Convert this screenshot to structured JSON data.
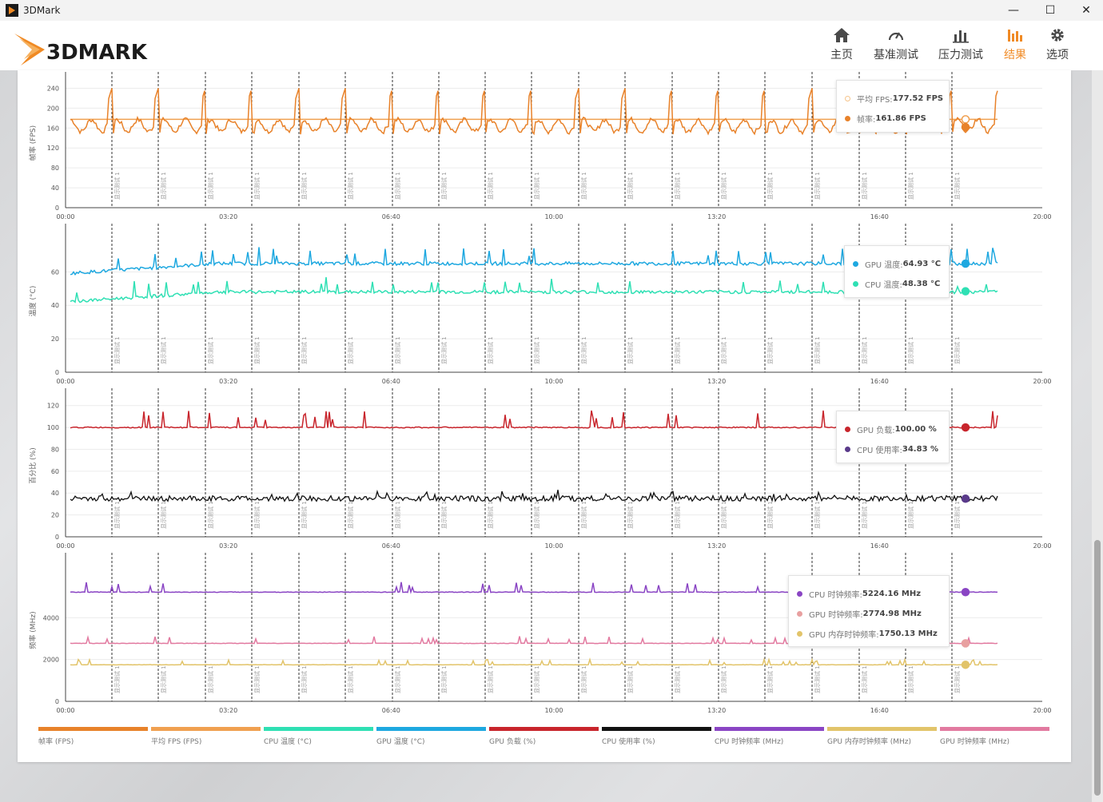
{
  "window": {
    "title": "3DMark",
    "minimize": "—",
    "maximize": "☐",
    "close": "✕"
  },
  "logo": {
    "text": "3DMARK"
  },
  "nav": [
    {
      "label": "主页",
      "icon": "home-icon"
    },
    {
      "label": "基准测试",
      "icon": "gauge-icon"
    },
    {
      "label": "压力测试",
      "icon": "bar-chart-icon"
    },
    {
      "label": "结果",
      "icon": "results-icon",
      "active": true
    },
    {
      "label": "选项",
      "icon": "gear-icon"
    }
  ],
  "colors": {
    "accent": "#f08a24",
    "fps": "#e8822a",
    "avg_fps": "#f0a050",
    "cpu_temp": "#2fe0b4",
    "gpu_temp": "#1ea8e0",
    "gpu_load": "#c8252c",
    "cpu_usage": "#111111",
    "cpu_clock": "#8a45c4",
    "gpu_mem_clock": "#e2c46a",
    "gpu_clock": "#e27aa0"
  },
  "marker_label": "显示测试 1",
  "chart_data": [
    {
      "type": "line",
      "ylabel": "帧率 (FPS)",
      "yticks": [
        "0",
        "40",
        "80",
        "120",
        "160",
        "200",
        "240"
      ],
      "ylim": [
        0,
        260
      ],
      "xticks": [
        "00:00",
        "03:20",
        "06:40",
        "10:00",
        "13:20",
        "16:40",
        "20:00"
      ],
      "xlim_seconds": [
        0,
        1200
      ],
      "series": [
        {
          "name": "平均 FPS",
          "value_label": "177.52 FPS",
          "baseline": 177.52,
          "spikes": 0
        },
        {
          "name": "帧率",
          "value_label": "161.86 FPS",
          "baseline": 165,
          "spike_to": 245,
          "min": 150
        }
      ]
    },
    {
      "type": "line",
      "ylabel": "温度 (°C)",
      "yticks": [
        "0",
        "20",
        "40",
        "60"
      ],
      "ylim": [
        0,
        85
      ],
      "xticks": [
        "00:00",
        "03:20",
        "06:40",
        "10:00",
        "13:20",
        "16:40",
        "20:00"
      ],
      "series": [
        {
          "name": "GPU 温度",
          "value_label": "64.93 °C",
          "baseline": 65,
          "start": 58
        },
        {
          "name": "CPU 温度",
          "value_label": "48.38 °C",
          "baseline": 48,
          "start": 42
        }
      ]
    },
    {
      "type": "line",
      "ylabel": "百分比 (%)",
      "yticks": [
        "0",
        "20",
        "40",
        "60",
        "80",
        "100",
        "120"
      ],
      "ylim": [
        0,
        130
      ],
      "xticks": [
        "00:00",
        "03:20",
        "06:40",
        "10:00",
        "13:20",
        "16:40",
        "20:00"
      ],
      "series": [
        {
          "name": "GPU 负载",
          "value_label": "100.00 %",
          "baseline": 100
        },
        {
          "name": "CPU 使用率",
          "value_label": "34.83 %",
          "baseline": 35
        }
      ]
    },
    {
      "type": "line",
      "ylabel": "频率 (MHz)",
      "yticks": [
        "0",
        "2000",
        "4000"
      ],
      "ylim": [
        0,
        6800
      ],
      "xticks": [
        "00:00",
        "03:20",
        "06:40",
        "10:00",
        "13:20",
        "16:40",
        "20:00"
      ],
      "series": [
        {
          "name": "CPU 时钟频率",
          "value_label": "5224.16 MHz",
          "baseline": 5224
        },
        {
          "name": "GPU 时钟频率",
          "value_label": "2774.98 MHz",
          "baseline": 2775
        },
        {
          "name": "GPU 内存时钟频率",
          "value_label": "1750.13 MHz",
          "baseline": 1750
        }
      ]
    }
  ],
  "legend": [
    {
      "label": "帧率 (FPS)",
      "color": "#e8822a"
    },
    {
      "label": "平均 FPS (FPS)",
      "color": "#f0a050"
    },
    {
      "label": "CPU 温度 (°C)",
      "color": "#2fe0b4"
    },
    {
      "label": "GPU 温度 (°C)",
      "color": "#1ea8e0"
    },
    {
      "label": "GPU 负载 (%)",
      "color": "#c8252c"
    },
    {
      "label": "CPU 使用率 (%)",
      "color": "#111111"
    },
    {
      "label": "CPU 时钟频率 (MHz)",
      "color": "#8a45c4"
    },
    {
      "label": "GPU 内存时钟频率 (MHz)",
      "color": "#e2c46a"
    },
    {
      "label": "GPU 时钟频率 (MHz)",
      "color": "#e27aa0"
    }
  ],
  "tooltips": [
    {
      "rows": [
        {
          "label": "平均 FPS: ",
          "value": "177.52 FPS",
          "color": "#f6c48a",
          "hollow": true
        },
        {
          "label": "帧率: ",
          "value": "161.86 FPS",
          "color": "#e8822a"
        }
      ]
    },
    {
      "rows": [
        {
          "label": "GPU 温度: ",
          "value": "64.93 °C",
          "color": "#1ea8e0"
        },
        {
          "label": "CPU 温度: ",
          "value": "48.38 °C",
          "color": "#2fe0b4"
        }
      ]
    },
    {
      "rows": [
        {
          "label": "GPU 负载: ",
          "value": "100.00 %",
          "color": "#c8252c"
        },
        {
          "label": "CPU 使用率: ",
          "value": "34.83 %",
          "color": "#5a3a8a"
        }
      ]
    },
    {
      "rows": [
        {
          "label": "CPU 时钟频率: ",
          "value": "5224.16 MHz",
          "color": "#8a45c4"
        },
        {
          "label": "GPU 时钟频率: ",
          "value": "2774.98 MHz",
          "color": "#e8a0a0"
        },
        {
          "label": "GPU 内存时钟频率: ",
          "value": "1750.13 MHz",
          "color": "#e2c46a"
        }
      ]
    }
  ]
}
